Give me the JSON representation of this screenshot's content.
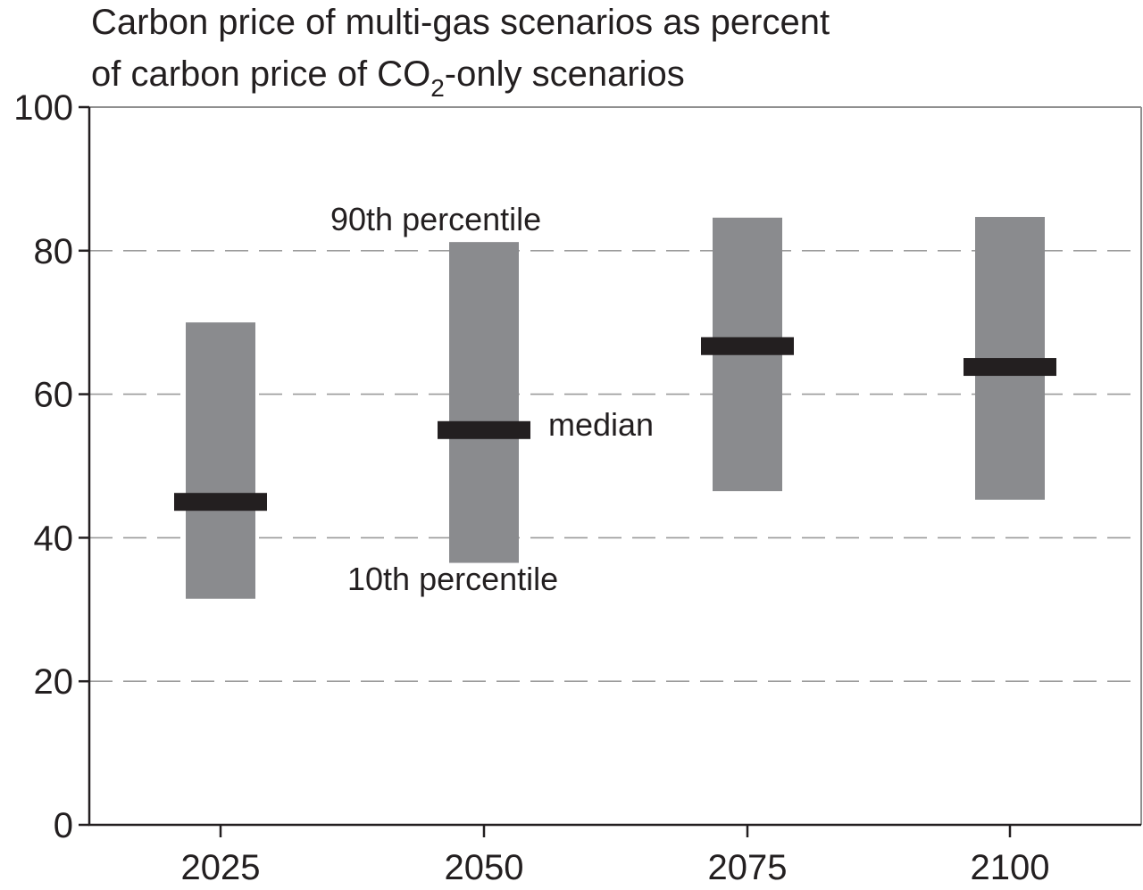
{
  "chart_data": {
    "type": "bar",
    "chart_kind": "floating range bars with median markers",
    "title_line1": "Carbon price of multi-gas scenarios as percent",
    "title_line2_pre": "of carbon price of CO",
    "title_line2_sub": "2",
    "title_line2_post": "-only scenarios",
    "xlabel": "",
    "ylabel": "",
    "categories": [
      "2025",
      "2050",
      "2075",
      "2100"
    ],
    "series": [
      {
        "name": "10th percentile",
        "values": [
          31.5,
          36.5,
          46.5,
          45.3
        ]
      },
      {
        "name": "median",
        "values": [
          45.0,
          55.0,
          66.7,
          63.8
        ]
      },
      {
        "name": "90th percentile",
        "values": [
          70.0,
          81.2,
          84.6,
          84.7
        ]
      }
    ],
    "ylim": [
      0,
      100
    ],
    "yticks": [
      0,
      20,
      40,
      60,
      80,
      100
    ],
    "grid": "dashed horizontal lines at 20, 40, 60, 80",
    "legend": "none",
    "annotations": {
      "p90": "90th percentile",
      "median": "median",
      "p10": "10th percentile"
    },
    "colors": {
      "range_bar": "#8a8b8e",
      "median_bar": "#231f20",
      "grid": "#9a9a9a",
      "axis": "#231f20",
      "frame": "#8f8f8f"
    }
  }
}
